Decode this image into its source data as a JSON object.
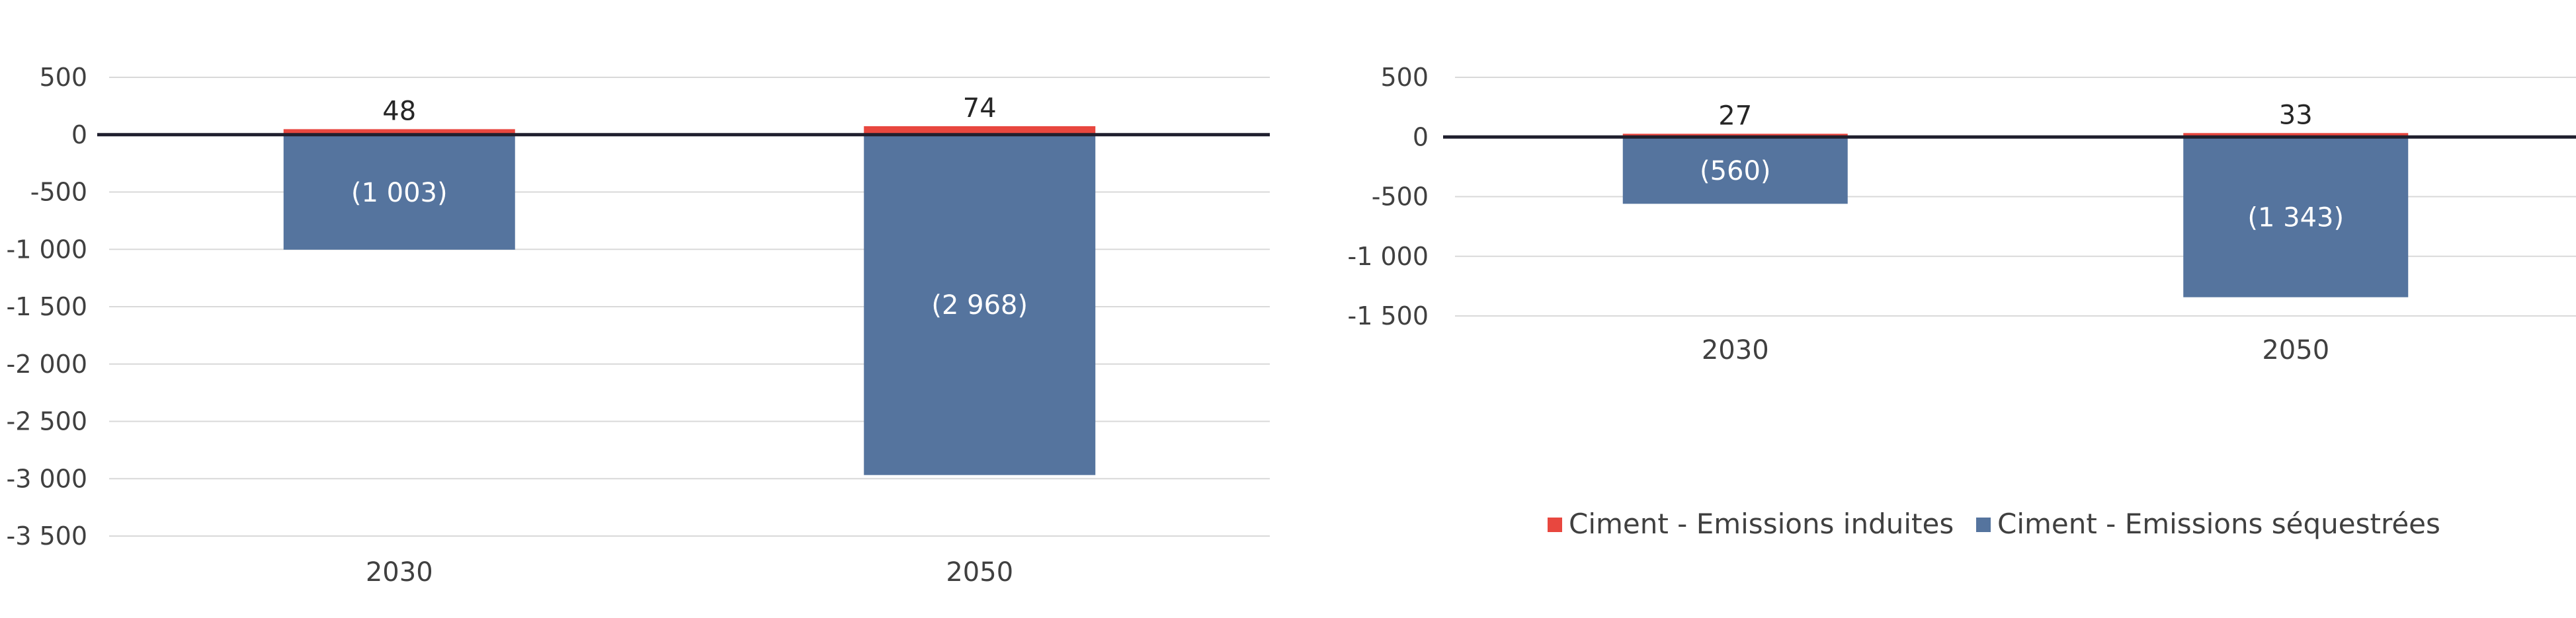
{
  "colors": {
    "induced": "#e8473f",
    "sequestered": "#55749e",
    "gridline": "#d9d9d9",
    "zero_line": "#1f1f2e"
  },
  "legend": {
    "induced": "Ciment - Emissions induites",
    "sequestered": "Ciment - Emissions séquestrées"
  },
  "chart_data": [
    {
      "type": "bar",
      "stacked": true,
      "categories": [
        "2030",
        "2050"
      ],
      "series": [
        {
          "name": "Ciment - Emissions induites",
          "values": [
            48,
            74
          ]
        },
        {
          "name": "Ciment - Emissions séquestrées",
          "values": [
            -1003,
            -2968
          ]
        }
      ],
      "data_labels": {
        "induced": [
          "48",
          "74"
        ],
        "sequestered": [
          "(1 003)",
          "(2 968)"
        ]
      },
      "ylim": [
        -3500,
        500
      ],
      "yticks": [
        500,
        0,
        -500,
        -1000,
        -1500,
        -2000,
        -2500,
        -3000,
        -3500
      ],
      "ytick_labels": [
        "500",
        "0",
        "-500",
        "-1 000",
        "-1 500",
        "-2 000",
        "-2 500",
        "-3 000",
        "-3 500"
      ],
      "grid": true,
      "title": "",
      "xlabel": "",
      "ylabel": ""
    },
    {
      "type": "bar",
      "stacked": true,
      "categories": [
        "2030",
        "2050"
      ],
      "series": [
        {
          "name": "Ciment - Emissions induites",
          "values": [
            27,
            33
          ]
        },
        {
          "name": "Ciment - Emissions séquestrées",
          "values": [
            -560,
            -1343
          ]
        }
      ],
      "data_labels": {
        "induced": [
          "27",
          "33"
        ],
        "sequestered": [
          "(560)",
          "(1 343)"
        ]
      },
      "ylim": [
        -1500,
        500
      ],
      "yticks": [
        500,
        0,
        -500,
        -1000,
        -1500
      ],
      "ytick_labels": [
        "500",
        "0",
        "-500",
        "-1 000",
        "-1 500"
      ],
      "grid": true,
      "legend_position": "bottom",
      "title": "",
      "xlabel": "",
      "ylabel": ""
    }
  ]
}
